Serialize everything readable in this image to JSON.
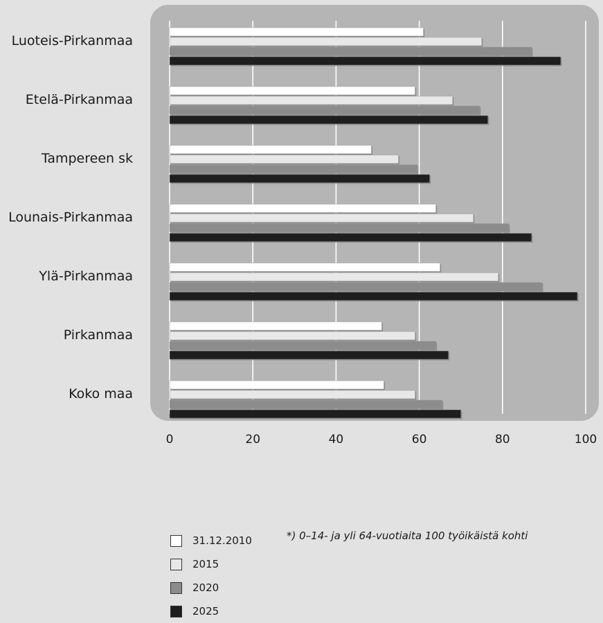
{
  "chart_data": {
    "type": "bar",
    "orientation": "horizontal",
    "categories": [
      "Luoteis-Pirkanmaa",
      "Etelä-Pirkanmaa",
      "Tampereen sk",
      "Lounais-Pirkanmaa",
      "Ylä-Pirkanmaa",
      "Pirkanmaa",
      "Koko maa"
    ],
    "series": [
      {
        "name": "31.12.2010",
        "color": "#ffffff",
        "values": [
          61,
          59,
          48.5,
          64,
          65,
          51,
          51.5
        ]
      },
      {
        "name": "2015",
        "color": "#e8e8e8",
        "values": [
          75,
          68,
          55,
          73,
          79,
          59,
          59
        ]
      },
      {
        "name": "2020",
        "color": "#8c8c8c",
        "values": [
          87,
          74.5,
          59.5,
          81.5,
          89.5,
          64,
          65.5
        ]
      },
      {
        "name": "2025",
        "color": "#1e1e1e",
        "values": [
          94,
          76.5,
          62.5,
          87,
          98,
          67,
          70
        ]
      }
    ],
    "xlim": [
      0,
      100
    ],
    "xticks": [
      "0",
      "20",
      "40",
      "60",
      "80",
      "100"
    ],
    "grid": true,
    "legend_position": "bottom-left",
    "annotation": "*) 0–14- ja yli 64-vuotiaita 100 työikäistä kohti",
    "plot_background": "#b5b5b5"
  }
}
